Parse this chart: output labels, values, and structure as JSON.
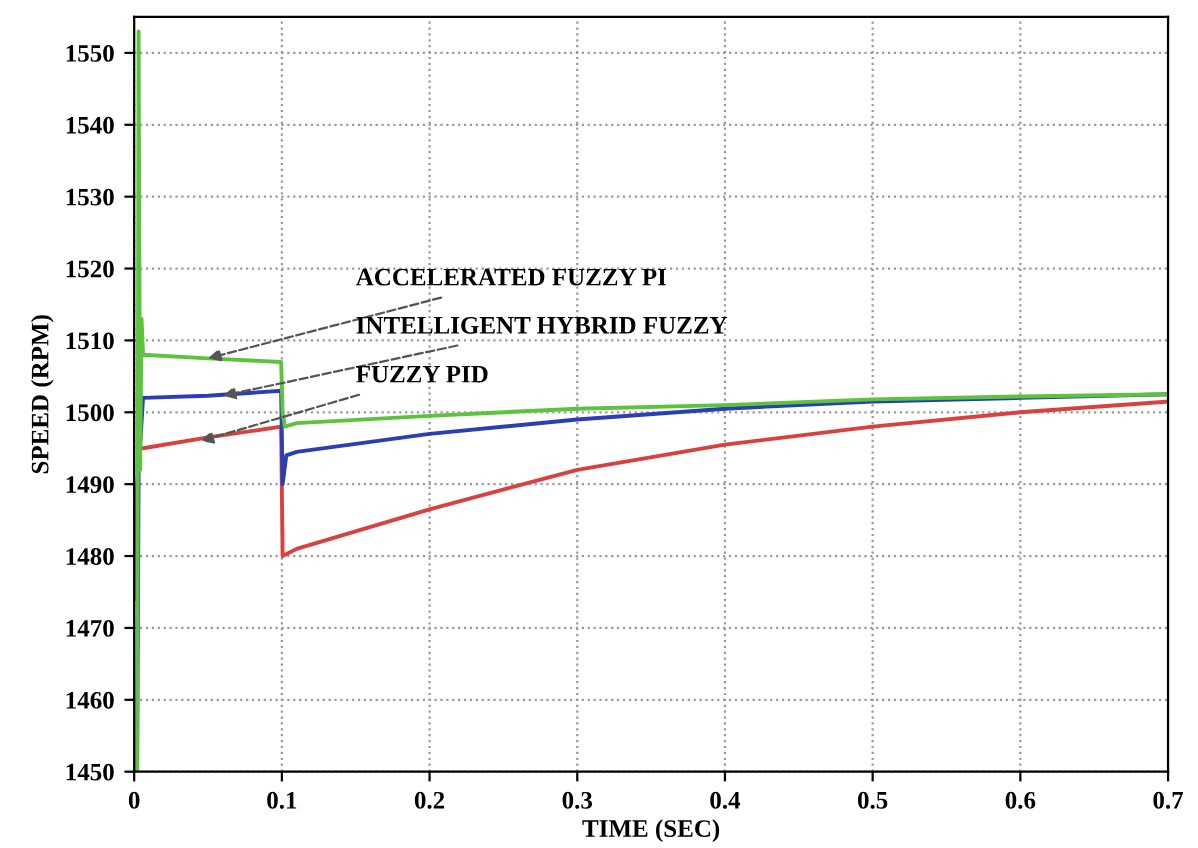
{
  "chart_data": {
    "type": "line",
    "xlabel": "TIME (SEC)",
    "ylabel": "SPEED (RPM)",
    "xlim": [
      0,
      0.7
    ],
    "xticks": [
      0,
      0.1,
      0.2,
      0.3,
      0.4,
      0.5,
      0.6,
      0.7
    ],
    "ylim": [
      1450,
      1555
    ],
    "yticks": [
      1450,
      1460,
      1470,
      1480,
      1490,
      1500,
      1510,
      1520,
      1530,
      1540,
      1550
    ],
    "grid": true,
    "line_style": "solid",
    "series": [
      {
        "color": "#d94040",
        "x": [
          0,
          0.002,
          0.004,
          0.006,
          0.05,
          0.0995,
          0.1005,
          0.11,
          0.2,
          0.3,
          0.4,
          0.5,
          0.6,
          0.7
        ],
        "values": [
          1474,
          1490,
          1495,
          1495,
          1496.5,
          1498,
          1480,
          1481,
          1486.5,
          1492,
          1495.5,
          1498,
          1500,
          1501.5
        ]
      },
      {
        "color": "#2b3fb5",
        "x": [
          0.002,
          0.003,
          0.006,
          0.05,
          0.0995,
          0.1005,
          0.103,
          0.11,
          0.2,
          0.3,
          0.4,
          0.5,
          0.6,
          0.7
        ],
        "values": [
          1450,
          1492,
          1502,
          1502.3,
          1503,
          1490,
          1494,
          1494.5,
          1497,
          1499,
          1500.5,
          1501.5,
          1502,
          1502.5
        ]
      },
      {
        "color": "#5cc43c",
        "x": [
          0.002,
          0.003,
          0.004,
          0.005,
          0.006,
          0.05,
          0.0995,
          0.1005,
          0.102,
          0.11,
          0.2,
          0.3,
          0.4,
          0.5,
          0.6,
          0.7
        ],
        "values": [
          1450,
          1553,
          1492,
          1513,
          1508,
          1507.5,
          1507,
          1500,
          1498,
          1498.5,
          1499.5,
          1500.5,
          1501,
          1501.8,
          1502.2,
          1502.5
        ]
      }
    ],
    "annotations": [
      {
        "text": "ACCELERATED FUZZY PI",
        "x": 0.05,
        "y": 1507.5
      },
      {
        "text": "INTELLIGENT HYBRID FUZZY",
        "x": 0.06,
        "y": 1502.3
      },
      {
        "text": "FUZZY PID",
        "x": 0.045,
        "y": 1496
      }
    ]
  }
}
